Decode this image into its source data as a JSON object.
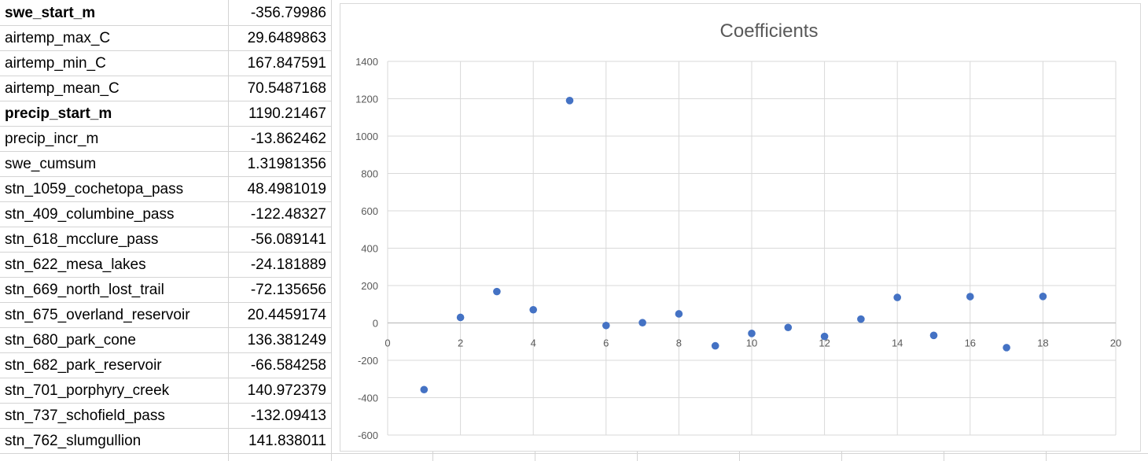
{
  "table": {
    "rows": [
      {
        "name": "swe_start_m",
        "value": "-356.79986",
        "bold": true
      },
      {
        "name": "airtemp_max_C",
        "value": "29.6489863",
        "bold": false
      },
      {
        "name": "airtemp_min_C",
        "value": "167.847591",
        "bold": false
      },
      {
        "name": "airtemp_mean_C",
        "value": "70.5487168",
        "bold": false
      },
      {
        "name": "precip_start_m",
        "value": "1190.21467",
        "bold": true
      },
      {
        "name": "precip_incr_m",
        "value": "-13.862462",
        "bold": false
      },
      {
        "name": "swe_cumsum",
        "value": "1.31981356",
        "bold": false
      },
      {
        "name": "stn_1059_cochetopa_pass",
        "value": "48.4981019",
        "bold": false
      },
      {
        "name": "stn_409_columbine_pass",
        "value": "-122.48327",
        "bold": false
      },
      {
        "name": "stn_618_mcclure_pass",
        "value": "-56.089141",
        "bold": false
      },
      {
        "name": "stn_622_mesa_lakes",
        "value": "-24.181889",
        "bold": false
      },
      {
        "name": "stn_669_north_lost_trail",
        "value": "-72.135656",
        "bold": false
      },
      {
        "name": "stn_675_overland_reservoir",
        "value": "20.4459174",
        "bold": false
      },
      {
        "name": "stn_680_park_cone",
        "value": "136.381249",
        "bold": false
      },
      {
        "name": "stn_682_park_reservoir",
        "value": "-66.584258",
        "bold": false
      },
      {
        "name": "stn_701_porphyry_creek",
        "value": "140.972379",
        "bold": false
      },
      {
        "name": "stn_737_schofield_pass",
        "value": "-132.09413",
        "bold": false
      },
      {
        "name": "stn_762_slumgullion",
        "value": "141.838011",
        "bold": false
      }
    ]
  },
  "chart_data": {
    "type": "scatter",
    "title": "Coefficients",
    "xlabel": "",
    "ylabel": "",
    "xlim": [
      0,
      20
    ],
    "ylim": [
      -600,
      1400
    ],
    "xticks": [
      0,
      2,
      4,
      6,
      8,
      10,
      12,
      14,
      16,
      18,
      20
    ],
    "yticks": [
      -600,
      -400,
      -200,
      0,
      200,
      400,
      600,
      800,
      1000,
      1200,
      1400
    ],
    "grid": true,
    "legend": "none",
    "marker_color": "#4472C4",
    "series": [
      {
        "name": "Coefficients",
        "x": [
          1,
          2,
          3,
          4,
          5,
          6,
          7,
          8,
          9,
          10,
          11,
          12,
          13,
          14,
          15,
          16,
          17,
          18
        ],
        "y": [
          -356.79986,
          29.6489863,
          167.847591,
          70.5487168,
          1190.21467,
          -13.862462,
          1.31981356,
          48.4981019,
          -122.48327,
          -56.089141,
          -24.181889,
          -72.135656,
          20.4459174,
          136.381249,
          -66.584258,
          140.972379,
          -132.09413,
          141.838011
        ]
      }
    ]
  }
}
